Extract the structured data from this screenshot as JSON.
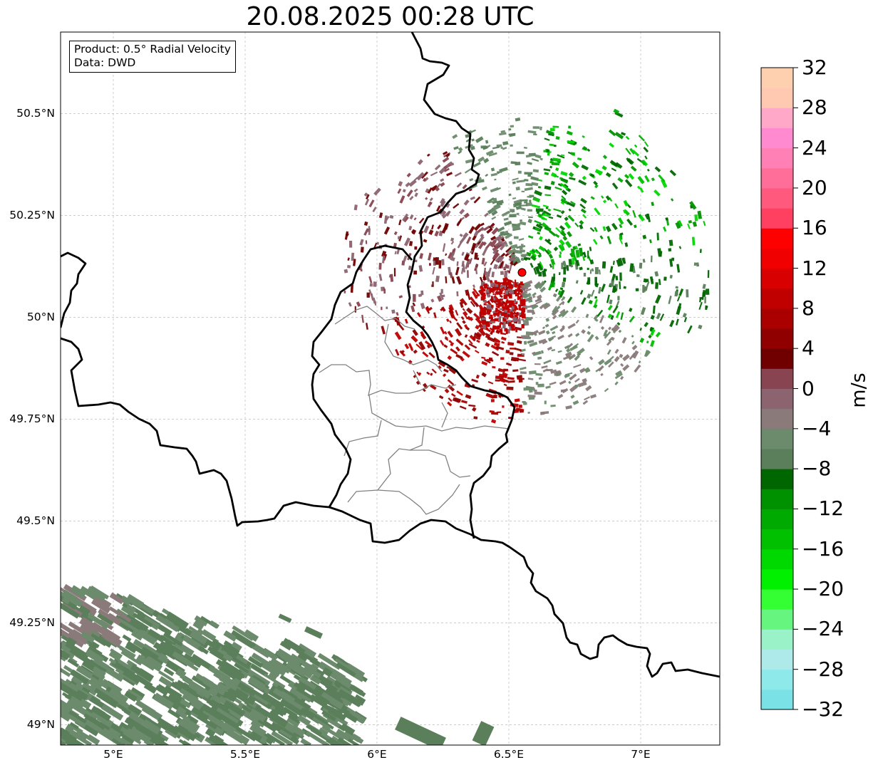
{
  "title": "20.08.2025 00:28 UTC",
  "info_box": {
    "product": "Product: 0.5° Radial Velocity",
    "source": "Data: DWD"
  },
  "map": {
    "lon_range": [
      4.8,
      7.3
    ],
    "lat_range": [
      48.95,
      50.7
    ],
    "lat_ticks": [
      {
        "value": 50.5,
        "label": "50.5°N"
      },
      {
        "value": 50.25,
        "label": "50.25°N"
      },
      {
        "value": 50.0,
        "label": "50°N"
      },
      {
        "value": 49.75,
        "label": "49.75°N"
      },
      {
        "value": 49.5,
        "label": "49.5°N"
      },
      {
        "value": 49.25,
        "label": "49.25°N"
      },
      {
        "value": 49.0,
        "label": "49°N"
      }
    ],
    "lon_ticks": [
      {
        "value": 5.0,
        "label": "5°E"
      },
      {
        "value": 5.5,
        "label": "5.5°E"
      },
      {
        "value": 6.0,
        "label": "6°E"
      },
      {
        "value": 6.5,
        "label": "6.5°E"
      },
      {
        "value": 7.0,
        "label": "7°E"
      }
    ],
    "gridlines": true,
    "radar_site": {
      "lon": 6.55,
      "lat": 50.11,
      "color": "#ff0000"
    }
  },
  "colorbar": {
    "label": "m/s",
    "min": -32,
    "max": 32,
    "step": 4,
    "tick_labels": [
      "32",
      "28",
      "24",
      "20",
      "16",
      "12",
      "8",
      "4",
      "0",
      "−4",
      "−8",
      "−12",
      "−16",
      "−20",
      "−24",
      "−28",
      "−32"
    ],
    "colors_bottom_to_top": [
      "#7ae2e6",
      "#8eeaea",
      "#aeeaea",
      "#9af2c8",
      "#66f57e",
      "#33ff33",
      "#00f000",
      "#00d900",
      "#00c000",
      "#00aa00",
      "#009100",
      "#006600",
      "#5a7f5a",
      "#6c8a6c",
      "#8a7a7a",
      "#8b6470",
      "#884450",
      "#700000",
      "#900000",
      "#aa0000",
      "#c00000",
      "#d80000",
      "#f00000",
      "#ff0000",
      "#ff4060",
      "#ff5a7e",
      "#ff6e98",
      "#ff80b4",
      "#ff8ad0",
      "#ffa8c8",
      "#ffc8b0",
      "#ffd0b0"
    ]
  }
}
